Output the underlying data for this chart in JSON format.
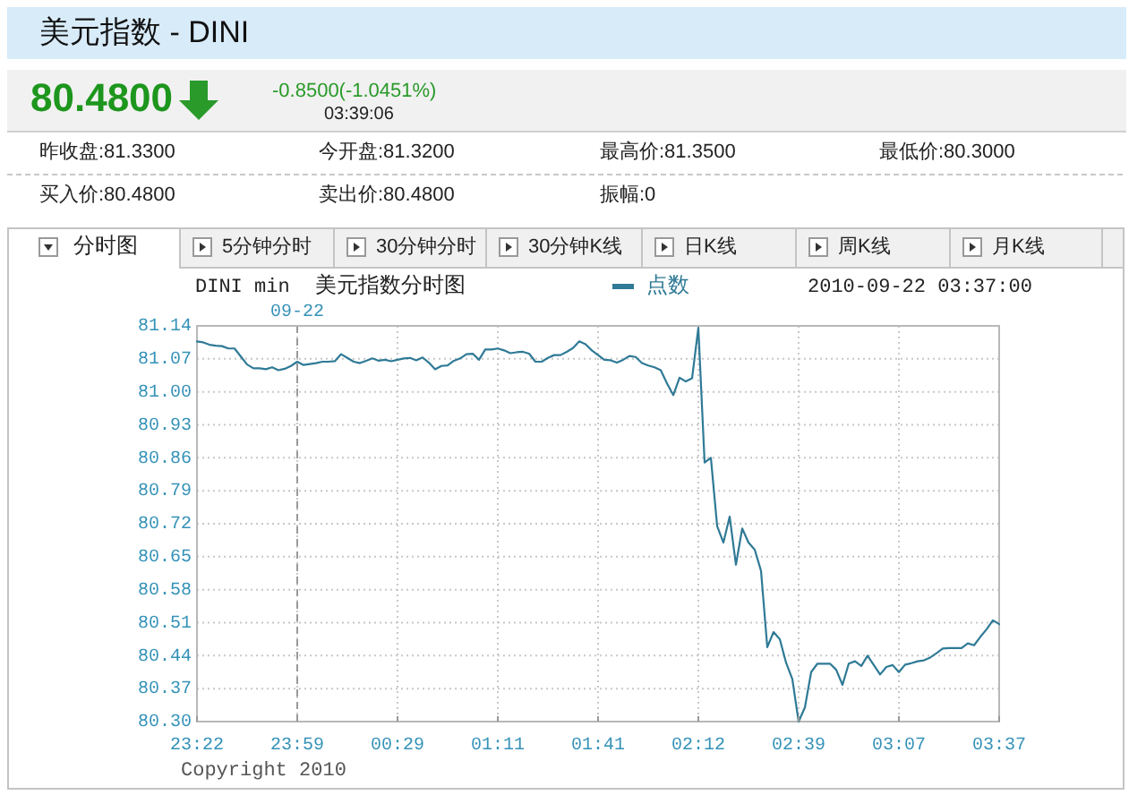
{
  "chart_data": {
    "type": "line",
    "title": "美元指数 - DINI",
    "subtitle": "美元指数分时图",
    "annotations": [
      "80.4800",
      "-0.8500(-1.0451%)",
      "03:39:06",
      "昨收盘:81.3300",
      "今开盘:81.3200",
      "最高价:81.3500",
      "最低价:80.3000",
      "买入价:80.4800",
      "卖出价:80.4800",
      "振幅:0",
      "分时图",
      "5分钟分时",
      "30分钟分时",
      "30分钟K线",
      "日K线",
      "周K线",
      "月K线",
      "DINI min",
      "2010-09-22 03:37:00",
      "Copyright 2010"
    ],
    "categories": [
      "23:22",
      null,
      null,
      null,
      null,
      null,
      null,
      null,
      null,
      null,
      null,
      null,
      null,
      null,
      null,
      null,
      "23:59",
      null,
      null,
      null,
      null,
      null,
      null,
      null,
      null,
      null,
      null,
      null,
      null,
      null,
      null,
      null,
      "00:29",
      null,
      null,
      null,
      null,
      null,
      null,
      null,
      null,
      null,
      null,
      null,
      null,
      null,
      null,
      null,
      "01:11",
      null,
      null,
      null,
      null,
      null,
      null,
      null,
      null,
      null,
      null,
      null,
      null,
      null,
      null,
      null,
      "01:41",
      null,
      null,
      null,
      null,
      null,
      null,
      null,
      null,
      null,
      null,
      null,
      null,
      null,
      null,
      null,
      "02:12",
      null,
      null,
      null,
      null,
      null,
      null,
      null,
      null,
      null,
      null,
      null,
      null,
      null,
      null,
      null,
      "02:39",
      null,
      null,
      null,
      null,
      null,
      null,
      null,
      null,
      null,
      null,
      null,
      null,
      null,
      null,
      null,
      "03:07",
      null,
      null,
      null,
      null,
      null,
      null,
      null,
      null,
      null,
      null,
      null,
      null,
      null,
      null,
      null,
      "03:37"
    ],
    "series": [
      {
        "name": "点数",
        "color": "#2f7a96",
        "values": [
          81.107,
          81.105,
          81.1,
          81.098,
          81.097,
          81.092,
          81.092,
          81.075,
          81.058,
          81.05,
          81.05,
          81.048,
          81.052,
          81.046,
          81.049,
          81.055,
          81.064,
          81.057,
          81.059,
          81.061,
          81.064,
          81.064,
          81.065,
          81.08,
          81.072,
          81.064,
          81.061,
          81.066,
          81.071,
          81.066,
          81.068,
          81.065,
          81.068,
          81.071,
          81.072,
          81.067,
          81.073,
          81.062,
          81.048,
          81.055,
          81.056,
          81.066,
          81.071,
          81.08,
          81.081,
          81.068,
          81.09,
          81.09,
          81.092,
          81.088,
          81.082,
          81.084,
          81.085,
          81.081,
          81.064,
          81.064,
          81.072,
          81.078,
          81.078,
          81.085,
          81.093,
          81.107,
          81.101,
          81.088,
          81.078,
          81.068,
          81.067,
          81.062,
          81.068,
          81.076,
          81.074,
          81.061,
          81.056,
          81.052,
          81.046,
          81.018,
          80.993,
          81.03,
          81.022,
          81.029,
          81.136,
          80.85,
          80.86,
          80.715,
          80.68,
          80.735,
          80.633,
          80.71,
          80.68,
          80.665,
          80.62,
          80.458,
          80.49,
          80.475,
          80.425,
          80.39,
          80.3,
          80.33,
          80.405,
          80.423,
          80.423,
          80.423,
          80.41,
          80.378,
          80.423,
          80.428,
          80.418,
          80.44,
          80.42,
          80.4,
          80.416,
          80.42,
          80.405,
          80.421,
          80.424,
          80.428,
          80.43,
          80.436,
          80.445,
          80.455,
          80.456,
          80.456,
          80.456,
          80.466,
          80.462,
          80.48,
          80.496,
          80.515,
          80.507
        ]
      }
    ],
    "ylim": [
      80.3,
      81.14
    ],
    "yticks": [
      {
        "value": 80.3,
        "label": "80.30"
      },
      80.37,
      80.44,
      80.51,
      80.58,
      80.65,
      80.72,
      80.79,
      80.86,
      80.93,
      {
        "value": 81,
        "label": "81.00"
      },
      81.07,
      81.14
    ],
    "ref_lines": [
      {
        "axis": "x",
        "value": "23:59",
        "label": "09-22",
        "line_style": "dashed",
        "color": "#999999"
      }
    ],
    "grid": true,
    "legend": "top"
  }
}
